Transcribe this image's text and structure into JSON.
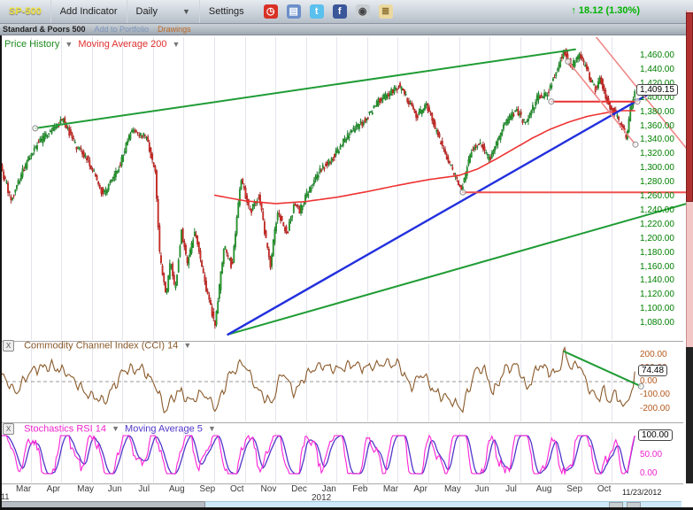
{
  "toolbar": {
    "symbol": "SP-500",
    "add_indicator": "Add Indicator",
    "timeframe_label": "Daily",
    "settings_label": "Settings",
    "icons": [
      {
        "name": "alarm-icon",
        "glyph": "◷",
        "bg": "#d93025",
        "fg": "#ffffff"
      },
      {
        "name": "blocks-icon",
        "glyph": "▤",
        "bg": "#6b8fc9",
        "fg": "#ffffff"
      },
      {
        "name": "twitter-icon",
        "glyph": "t",
        "bg": "#5ac0ee",
        "fg": "#ffffff"
      },
      {
        "name": "facebook-icon",
        "glyph": "f",
        "bg": "#3a579a",
        "fg": "#ffffff"
      },
      {
        "name": "camera-icon",
        "glyph": "◉",
        "bg": "#c9ced3",
        "fg": "#444444"
      },
      {
        "name": "notes-icon",
        "glyph": "≣",
        "bg": "#ecd9a0",
        "fg": "#8a6d2f"
      }
    ],
    "quote": {
      "arrow": "↑",
      "text": "18.12 (1.30%)",
      "color": "#00b300"
    }
  },
  "subtoolbar": {
    "name": "Standard & Poors 500",
    "add_to_portfolio": "Add to Portfolio",
    "drawings": "Drawings"
  },
  "panes": {
    "price": {
      "title1": "Price History",
      "title2": "Moving Average 200",
      "title1_color": "#1f8a1f",
      "title2_color": "#e03030",
      "value_label": "1,409.15",
      "axis_labels": [
        "1,460.00",
        "1,440.00",
        "1,420.00",
        "1,400.00",
        "1,380.00",
        "1,360.00",
        "1,340.00",
        "1,320.00",
        "1,300.00",
        "1,280.00",
        "1,260.00",
        "1,240.00",
        "1,220.00",
        "1,200.00",
        "1,180.00",
        "1,160.00",
        "1,140.00",
        "1,120.00",
        "1,100.00",
        "1,080.00"
      ],
      "axis_color": "#008000"
    },
    "cci": {
      "close_label": "X",
      "title": "Commodity Channel Index (CCI) 14",
      "title_color": "#8a5a2b",
      "value_label": "74.48",
      "axis_labels": [
        "200.00",
        "100.00",
        "0.00",
        "-100.00",
        "-200.00"
      ],
      "axis_color": "#b4591e"
    },
    "stoch": {
      "close_label": "X",
      "title1": "Stochastics RSI 14",
      "title2": "Moving Average 5",
      "title1_color": "#ee22cc",
      "title2_color": "#5136c9",
      "value_label": "100.00",
      "axis_labels": [
        "100.00",
        "50.00",
        "0.00"
      ],
      "axis_color": "#ee22cc"
    }
  },
  "xaxis": {
    "months": [
      "Mar",
      "Apr",
      "May",
      "Jun",
      "Jul",
      "Aug",
      "Sep",
      "Oct",
      "Nov",
      "Dec",
      "Jan",
      "Feb",
      "Mar",
      "Apr",
      "May",
      "Jun",
      "Jul",
      "Aug",
      "Sep",
      "Oct"
    ],
    "year": "2012",
    "partial_year_left": "11",
    "last_date": "11/23/2012"
  },
  "chart_data": {
    "type": "candlestick",
    "symbol": "SP-500",
    "timeframe": "Daily",
    "x_range_months": 20.77,
    "bars": 436,
    "price_axis": {
      "min": 1080,
      "max": 1460,
      "step": 20
    },
    "last_price": 1409.15,
    "candle_up_color": "#2ca42c",
    "candle_down_color": "#d93025",
    "price_keyframes": [
      [
        0.0,
        1308
      ],
      [
        0.4,
        1254
      ],
      [
        0.8,
        1300
      ],
      [
        1.2,
        1332
      ],
      [
        1.8,
        1360
      ],
      [
        2.1,
        1368
      ],
      [
        2.5,
        1332
      ],
      [
        2.9,
        1312
      ],
      [
        3.4,
        1262
      ],
      [
        3.9,
        1300
      ],
      [
        4.3,
        1352
      ],
      [
        4.8,
        1344
      ],
      [
        5.1,
        1292
      ],
      [
        5.25,
        1172
      ],
      [
        5.45,
        1120
      ],
      [
        5.6,
        1172
      ],
      [
        5.75,
        1124
      ],
      [
        5.95,
        1212
      ],
      [
        6.15,
        1162
      ],
      [
        6.4,
        1214
      ],
      [
        6.7,
        1140
      ],
      [
        7.05,
        1078
      ],
      [
        7.35,
        1190
      ],
      [
        7.6,
        1160
      ],
      [
        7.9,
        1284
      ],
      [
        8.2,
        1238
      ],
      [
        8.5,
        1260
      ],
      [
        8.85,
        1160
      ],
      [
        9.1,
        1240
      ],
      [
        9.4,
        1208
      ],
      [
        9.65,
        1250
      ],
      [
        9.8,
        1238
      ],
      [
        10.0,
        1258
      ],
      [
        10.4,
        1292
      ],
      [
        10.9,
        1316
      ],
      [
        11.4,
        1348
      ],
      [
        11.9,
        1366
      ],
      [
        12.4,
        1396
      ],
      [
        12.7,
        1404
      ],
      [
        13.05,
        1418
      ],
      [
        13.35,
        1398
      ],
      [
        13.65,
        1372
      ],
      [
        13.95,
        1392
      ],
      [
        14.25,
        1356
      ],
      [
        14.6,
        1318
      ],
      [
        15.1,
        1268
      ],
      [
        15.45,
        1328
      ],
      [
        15.75,
        1334
      ],
      [
        16.0,
        1312
      ],
      [
        16.5,
        1360
      ],
      [
        16.9,
        1384
      ],
      [
        17.2,
        1362
      ],
      [
        17.6,
        1402
      ],
      [
        17.9,
        1404
      ],
      [
        18.2,
        1436
      ],
      [
        18.45,
        1468
      ],
      [
        18.7,
        1444
      ],
      [
        18.95,
        1462
      ],
      [
        19.25,
        1434
      ],
      [
        19.5,
        1412
      ],
      [
        19.65,
        1428
      ],
      [
        19.9,
        1390
      ],
      [
        20.15,
        1378
      ],
      [
        20.5,
        1344
      ],
      [
        20.65,
        1390
      ],
      [
        20.77,
        1409.15
      ]
    ],
    "ma200_color": "#ee3333",
    "ma200_keyframes": [
      [
        7.0,
        1262
      ],
      [
        8,
        1254
      ],
      [
        9,
        1250
      ],
      [
        10,
        1253
      ],
      [
        11,
        1259
      ],
      [
        12,
        1267
      ],
      [
        13,
        1276
      ],
      [
        14,
        1284
      ],
      [
        15,
        1290
      ],
      [
        15.6,
        1299
      ],
      [
        16.2,
        1313
      ],
      [
        16.8,
        1328
      ],
      [
        17.4,
        1343
      ],
      [
        18,
        1356
      ],
      [
        18.6,
        1366
      ],
      [
        19.2,
        1374
      ],
      [
        19.8,
        1379
      ],
      [
        20.3,
        1382
      ],
      [
        20.77,
        1382
      ]
    ],
    "trendlines": [
      {
        "name": "green-channel-upper",
        "color": "#1f9c35",
        "width": 2,
        "points": [
          [
            1.15,
            1357
          ],
          [
            18.8,
            1469
          ]
        ],
        "circles": [
          "start"
        ]
      },
      {
        "name": "green-channel-lower",
        "color": "#1f9c35",
        "width": 2,
        "points": [
          [
            7.45,
            1064
          ],
          [
            22.6,
            1252
          ]
        ],
        "circles": []
      },
      {
        "name": "blue-trendline",
        "color": "#2230dd",
        "width": 2.4,
        "points": [
          [
            7.45,
            1064
          ],
          [
            21.3,
            1408
          ]
        ],
        "circles": []
      },
      {
        "name": "red-resistance-line",
        "color": "#e83030",
        "width": 2,
        "points": [
          [
            18.02,
            1395
          ],
          [
            20.83,
            1395
          ]
        ],
        "circles": [
          "start",
          "end"
        ]
      },
      {
        "name": "red-support-line",
        "color": "#f05050",
        "width": 2,
        "points": [
          [
            15.13,
            1266
          ],
          [
            22.6,
            1266
          ]
        ],
        "circles": [
          "start"
        ]
      },
      {
        "name": "pink-down-channel-a",
        "color": "#f08a8a",
        "width": 1.6,
        "points": [
          [
            18.57,
            1452
          ],
          [
            20.77,
            1334
          ]
        ],
        "circles": [
          "start",
          "end"
        ]
      },
      {
        "name": "pink-down-channel-b",
        "color": "#f08a8a",
        "width": 1.6,
        "points": [
          [
            19.44,
            1489
          ],
          [
            22.65,
            1317
          ]
        ],
        "circles": []
      }
    ],
    "cci": {
      "line_color": "#8a5a2b",
      "axis_values": [
        200,
        100,
        0,
        -100,
        -200
      ],
      "last_value": 74.48,
      "keyframes": [
        [
          0,
          60
        ],
        [
          0.5,
          -80
        ],
        [
          1,
          90
        ],
        [
          1.6,
          120
        ],
        [
          2.2,
          60
        ],
        [
          2.8,
          -90
        ],
        [
          3.4,
          -150
        ],
        [
          4,
          80
        ],
        [
          4.6,
          100
        ],
        [
          5.1,
          -40
        ],
        [
          5.35,
          -220
        ],
        [
          5.8,
          -60
        ],
        [
          6.2,
          -150
        ],
        [
          6.6,
          -80
        ],
        [
          7.05,
          -200
        ],
        [
          7.5,
          60
        ],
        [
          7.9,
          150
        ],
        [
          8.4,
          -60
        ],
        [
          8.85,
          -170
        ],
        [
          9.2,
          80
        ],
        [
          9.6,
          -90
        ],
        [
          10,
          60
        ],
        [
          10.5,
          120
        ],
        [
          11,
          90
        ],
        [
          11.5,
          130
        ],
        [
          12,
          100
        ],
        [
          12.5,
          140
        ],
        [
          13,
          130
        ],
        [
          13.4,
          -40
        ],
        [
          13.8,
          60
        ],
        [
          14.2,
          -80
        ],
        [
          14.7,
          -140
        ],
        [
          15.1,
          -200
        ],
        [
          15.5,
          80
        ],
        [
          15.8,
          90
        ],
        [
          16.1,
          -90
        ],
        [
          16.5,
          100
        ],
        [
          16.9,
          120
        ],
        [
          17.2,
          -60
        ],
        [
          17.6,
          130
        ],
        [
          17.9,
          80
        ],
        [
          18.2,
          60
        ],
        [
          18.45,
          228
        ],
        [
          18.6,
          100
        ],
        [
          18.9,
          130
        ],
        [
          19.2,
          -40
        ],
        [
          19.5,
          -130
        ],
        [
          19.7,
          -60
        ],
        [
          19.9,
          -150
        ],
        [
          20.1,
          -80
        ],
        [
          20.35,
          -190
        ],
        [
          20.55,
          -120
        ],
        [
          20.68,
          -40
        ],
        [
          20.77,
          74.48
        ]
      ],
      "trendline": {
        "name": "cci-green-trendline",
        "color": "#1f9c35",
        "width": 2,
        "points": [
          [
            18.42,
            225
          ],
          [
            20.95,
            -35
          ]
        ],
        "circles": [
          "end"
        ]
      }
    },
    "stoch": {
      "k_color": "#ff22d6",
      "d_color": "#5136c9",
      "axis_values": [
        100,
        50,
        0
      ],
      "last_value": 100.0
    }
  }
}
